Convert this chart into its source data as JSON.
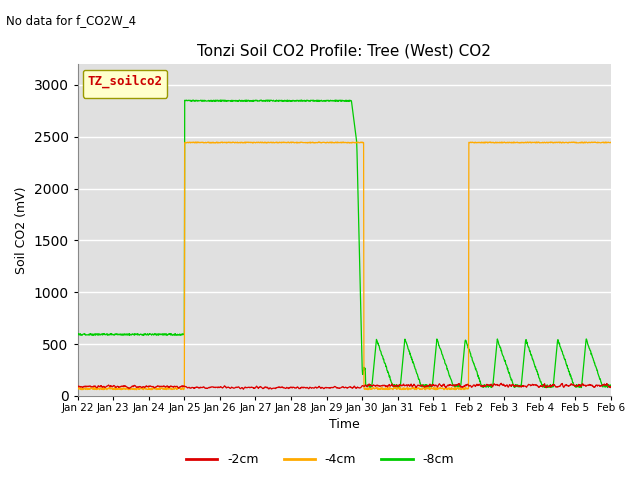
{
  "title": "Tonzi Soil CO2 Profile: Tree (West) CO2",
  "subtitle": "No data for f_CO2W_4",
  "ylabel": "Soil CO2 (mV)",
  "xlabel": "Time",
  "legend_label": "TZ_soilco2",
  "legend_entries": [
    "-2cm",
    "-4cm",
    "-8cm"
  ],
  "colors": {
    "red": "#dd0000",
    "orange": "#ffaa00",
    "green": "#00cc00"
  },
  "background_color": "#e0e0e0",
  "ylim": [
    0,
    3200
  ],
  "yticks": [
    0,
    500,
    1000,
    1500,
    2000,
    2500,
    3000
  ],
  "xlim": [
    0,
    15
  ],
  "xtick_positions": [
    0,
    1,
    2,
    3,
    4,
    5,
    6,
    7,
    8,
    9,
    10,
    11,
    12,
    13,
    14,
    15
  ],
  "xtick_labels": [
    "Jan 22",
    "Jan 23",
    "Jan 24",
    "Jan 25",
    "Jan 26",
    "Jan 27",
    "Jan 28",
    "Jan 29",
    "Jan 30",
    "Jan 31",
    "Feb 1",
    "Feb 2",
    "Feb 3",
    "Feb 4",
    "Feb 5",
    "Feb 6"
  ]
}
